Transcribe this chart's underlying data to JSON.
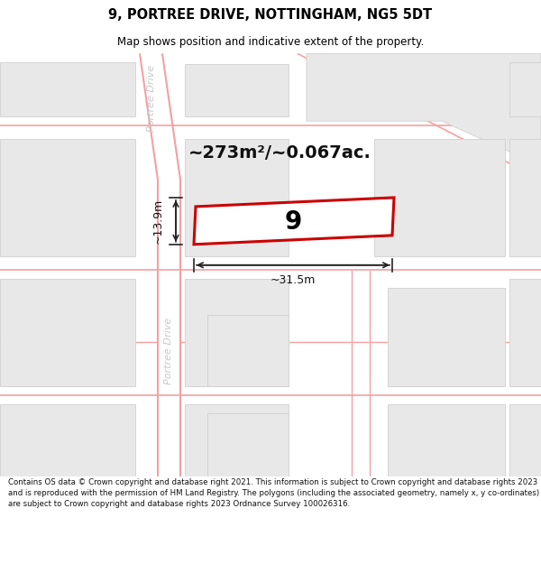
{
  "title": "9, PORTREE DRIVE, NOTTINGHAM, NG5 5DT",
  "subtitle": "Map shows position and indicative extent of the property.",
  "area_label": "~273m²/~0.067ac.",
  "house_number": "9",
  "width_label": "~31.5m",
  "height_label": "~13.9m",
  "footer": "Contains OS data © Crown copyright and database right 2021. This information is subject to Crown copyright and database rights 2023 and is reproduced with the permission of HM Land Registry. The polygons (including the associated geometry, namely x, y co-ordinates) are subject to Crown copyright and database rights 2023 Ordnance Survey 100026316.",
  "road_color": "#f5a0a0",
  "building_color": "#e8e8e8",
  "building_edge": "#d0d0d0",
  "highlight_color": "#cc0000",
  "road_label_color": "#cccccc",
  "title_color": "#000000",
  "footer_color": "#111111",
  "map_bg": "#ffffff"
}
